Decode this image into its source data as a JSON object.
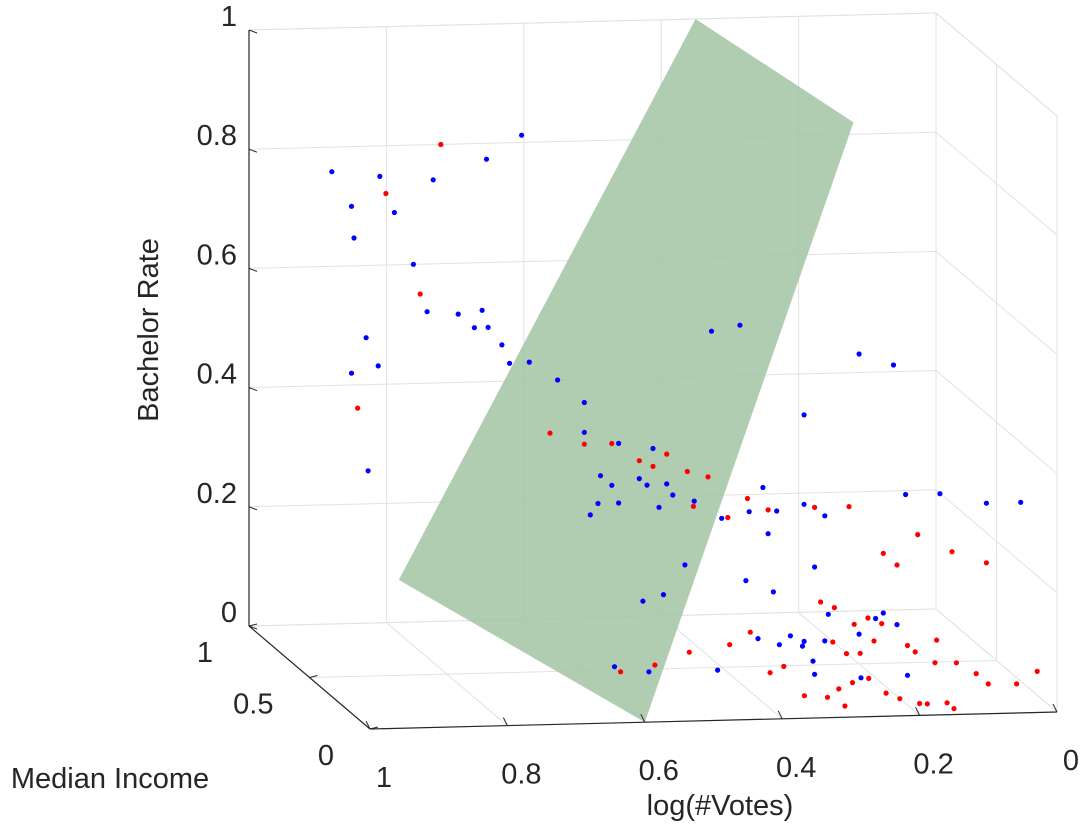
{
  "chart_data": {
    "type": "scatter",
    "view": "3d",
    "title": "",
    "xlabel": "log(#Votes)",
    "ylabel": "Median Income",
    "zlabel": "Bachelor Rate",
    "xlim": [
      0,
      1
    ],
    "ylim": [
      0,
      1
    ],
    "zlim": [
      0,
      1
    ],
    "x_ticks": [
      "0",
      "0.2",
      "0.4",
      "0.6",
      "0.8",
      "1"
    ],
    "y_ticks": [
      "0",
      "0.5",
      "1"
    ],
    "z_ticks": [
      "0",
      "0.2",
      "0.4",
      "0.6",
      "0.8",
      "1"
    ],
    "grid": true,
    "legend": "none",
    "colors": {
      "plane": "#a3c4a3",
      "blue": "#0000ff",
      "red": "#ff0000",
      "axis": "#262626",
      "grid": "#e2e2e2"
    },
    "plane": {
      "description": "",
      "corners": [
        {
          "x": 0.87,
          "y": 0.5,
          "z": 0.16
        },
        {
          "x": 0.35,
          "y": 1.0,
          "z": 1.0
        },
        {
          "x": 0.12,
          "y": 1.0,
          "z": 0.82
        },
        {
          "x": 0.6,
          "y": 0.0,
          "z": 0.0
        }
      ]
    },
    "series": [
      {
        "color": "blue",
        "points": [
          [
            0.95,
            0.3,
            0.38
          ],
          [
            0.95,
            0.6,
            0.83
          ],
          [
            0.93,
            0.55,
            0.78
          ],
          [
            0.88,
            0.6,
            0.82
          ],
          [
            0.9,
            0.7,
            0.7
          ],
          [
            0.85,
            0.65,
            0.75
          ],
          [
            0.82,
            0.5,
            0.83
          ],
          [
            0.76,
            0.4,
            0.88
          ],
          [
            0.7,
            0.45,
            0.91
          ],
          [
            0.93,
            0.55,
            0.5
          ],
          [
            0.9,
            0.6,
            0.55
          ],
          [
            0.9,
            0.5,
            0.52
          ],
          [
            0.82,
            0.55,
            0.6
          ],
          [
            0.84,
            0.55,
            0.68
          ],
          [
            0.78,
            0.52,
            0.6
          ],
          [
            0.76,
            0.5,
            0.58
          ],
          [
            0.74,
            0.55,
            0.6
          ],
          [
            0.72,
            0.5,
            0.55
          ],
          [
            0.74,
            0.5,
            0.58
          ],
          [
            0.68,
            0.5,
            0.52
          ],
          [
            0.7,
            0.55,
            0.51
          ],
          [
            0.63,
            0.55,
            0.48
          ],
          [
            0.6,
            0.5,
            0.45
          ],
          [
            0.6,
            0.5,
            0.4
          ],
          [
            0.55,
            0.5,
            0.38
          ],
          [
            0.58,
            0.48,
            0.33
          ],
          [
            0.5,
            0.5,
            0.37
          ],
          [
            0.48,
            0.5,
            0.31
          ],
          [
            0.5,
            0.55,
            0.3
          ],
          [
            0.52,
            0.5,
            0.32
          ],
          [
            0.55,
            0.5,
            0.28
          ],
          [
            0.6,
            0.45,
            0.27
          ],
          [
            0.58,
            0.5,
            0.28
          ],
          [
            0.56,
            0.5,
            0.31
          ],
          [
            0.5,
            0.45,
            0.28
          ],
          [
            0.48,
            0.45,
            0.3
          ],
          [
            0.44,
            0.5,
            0.28
          ],
          [
            0.4,
            0.5,
            0.25
          ],
          [
            0.36,
            0.5,
            0.26
          ],
          [
            0.34,
            0.5,
            0.3
          ],
          [
            0.32,
            0.5,
            0.26
          ],
          [
            0.28,
            0.5,
            0.27
          ],
          [
            0.25,
            0.5,
            0.25
          ],
          [
            0.48,
            0.35,
            0.2
          ],
          [
            0.4,
            0.3,
            0.18
          ],
          [
            0.36,
            0.3,
            0.16
          ],
          [
            0.35,
            0.4,
            0.24
          ],
          [
            0.3,
            0.3,
            0.2
          ],
          [
            0.28,
            0.3,
            0.12
          ],
          [
            0.22,
            0.25,
            0.12
          ],
          [
            0.2,
            0.3,
            0.12
          ],
          [
            0.18,
            0.3,
            0.1
          ],
          [
            0.55,
            0.3,
            0.15
          ],
          [
            0.52,
            0.3,
            0.16
          ],
          [
            0.4,
            0.2,
            0.1
          ],
          [
            0.36,
            0.25,
            0.08
          ],
          [
            0.32,
            0.2,
            0.06
          ],
          [
            0.6,
            0.25,
            0.05
          ],
          [
            0.55,
            0.25,
            0.04
          ],
          [
            0.45,
            0.25,
            0.04
          ],
          [
            0.3,
            0.5,
            0.05
          ],
          [
            0.28,
            0.5,
            0.04
          ],
          [
            0.3,
            0.4,
            0.05
          ],
          [
            0.25,
            0.5,
            0.04
          ],
          [
            0.2,
            0.5,
            0.05
          ],
          [
            0.3,
            0.3,
            0.02
          ],
          [
            0.25,
            0.2,
            0.03
          ],
          [
            0.2,
            0.1,
            0.05
          ],
          [
            0.45,
            0.3,
            0.6
          ],
          [
            0.4,
            0.35,
            0.6
          ],
          [
            0.2,
            0.5,
            0.52
          ],
          [
            0.15,
            0.5,
            0.5
          ],
          [
            0.28,
            0.5,
            0.42
          ],
          [
            0.15,
            0.4,
            0.3
          ],
          [
            0.1,
            0.4,
            0.3
          ],
          [
            0.05,
            0.3,
            0.3
          ],
          [
            0.0,
            0.3,
            0.3
          ]
        ]
      },
      {
        "color": "red",
        "points": [
          [
            0.93,
            0.5,
            0.45
          ],
          [
            0.88,
            0.55,
            0.8
          ],
          [
            0.8,
            0.55,
            0.88
          ],
          [
            0.83,
            0.55,
            0.63
          ],
          [
            0.65,
            0.5,
            0.4
          ],
          [
            0.6,
            0.5,
            0.38
          ],
          [
            0.56,
            0.5,
            0.38
          ],
          [
            0.52,
            0.5,
            0.35
          ],
          [
            0.5,
            0.5,
            0.34
          ],
          [
            0.48,
            0.5,
            0.36
          ],
          [
            0.45,
            0.5,
            0.33
          ],
          [
            0.42,
            0.5,
            0.32
          ],
          [
            0.45,
            0.45,
            0.28
          ],
          [
            0.4,
            0.45,
            0.26
          ],
          [
            0.38,
            0.4,
            0.3
          ],
          [
            0.35,
            0.4,
            0.28
          ],
          [
            0.3,
            0.3,
            0.3
          ],
          [
            0.25,
            0.3,
            0.3
          ],
          [
            0.2,
            0.3,
            0.22
          ],
          [
            0.18,
            0.3,
            0.2
          ],
          [
            0.15,
            0.3,
            0.25
          ],
          [
            0.1,
            0.3,
            0.22
          ],
          [
            0.05,
            0.3,
            0.2
          ],
          [
            0.3,
            0.25,
            0.15
          ],
          [
            0.28,
            0.25,
            0.14
          ],
          [
            0.26,
            0.2,
            0.12
          ],
          [
            0.24,
            0.2,
            0.13
          ],
          [
            0.22,
            0.2,
            0.12
          ],
          [
            0.3,
            0.15,
            0.1
          ],
          [
            0.28,
            0.15,
            0.08
          ],
          [
            0.26,
            0.15,
            0.08
          ],
          [
            0.24,
            0.15,
            0.1
          ],
          [
            0.2,
            0.1,
            0.1
          ],
          [
            0.18,
            0.15,
            0.08
          ],
          [
            0.16,
            0.1,
            0.07
          ],
          [
            0.14,
            0.2,
            0.09
          ],
          [
            0.12,
            0.15,
            0.06
          ],
          [
            0.1,
            0.1,
            0.05
          ],
          [
            0.3,
            0.1,
            0.03
          ],
          [
            0.28,
            0.1,
            0.04
          ],
          [
            0.26,
            0.08,
            0.05
          ],
          [
            0.24,
            0.05,
            0.03
          ],
          [
            0.22,
            0.05,
            0.02
          ],
          [
            0.2,
            0.0,
            0.02
          ],
          [
            0.18,
            0.05,
            0.01
          ],
          [
            0.35,
            0.1,
            0.02
          ],
          [
            0.32,
            0.08,
            0.02
          ],
          [
            0.3,
            0.05,
            0.01
          ],
          [
            0.4,
            0.1,
            0.06
          ],
          [
            0.38,
            0.1,
            0.07
          ],
          [
            0.45,
            0.15,
            0.1
          ],
          [
            0.42,
            0.15,
            0.12
          ],
          [
            0.5,
            0.2,
            0.08
          ],
          [
            0.55,
            0.2,
            0.06
          ],
          [
            0.6,
            0.2,
            0.05
          ],
          [
            0.1,
            0.0,
            0.05
          ],
          [
            0.05,
            0.05,
            0.04
          ],
          [
            0.02,
            0.05,
            0.06
          ],
          [
            0.15,
            0.0,
            0.01
          ],
          [
            0.16,
            0.0,
            0.02
          ]
        ]
      }
    ]
  }
}
